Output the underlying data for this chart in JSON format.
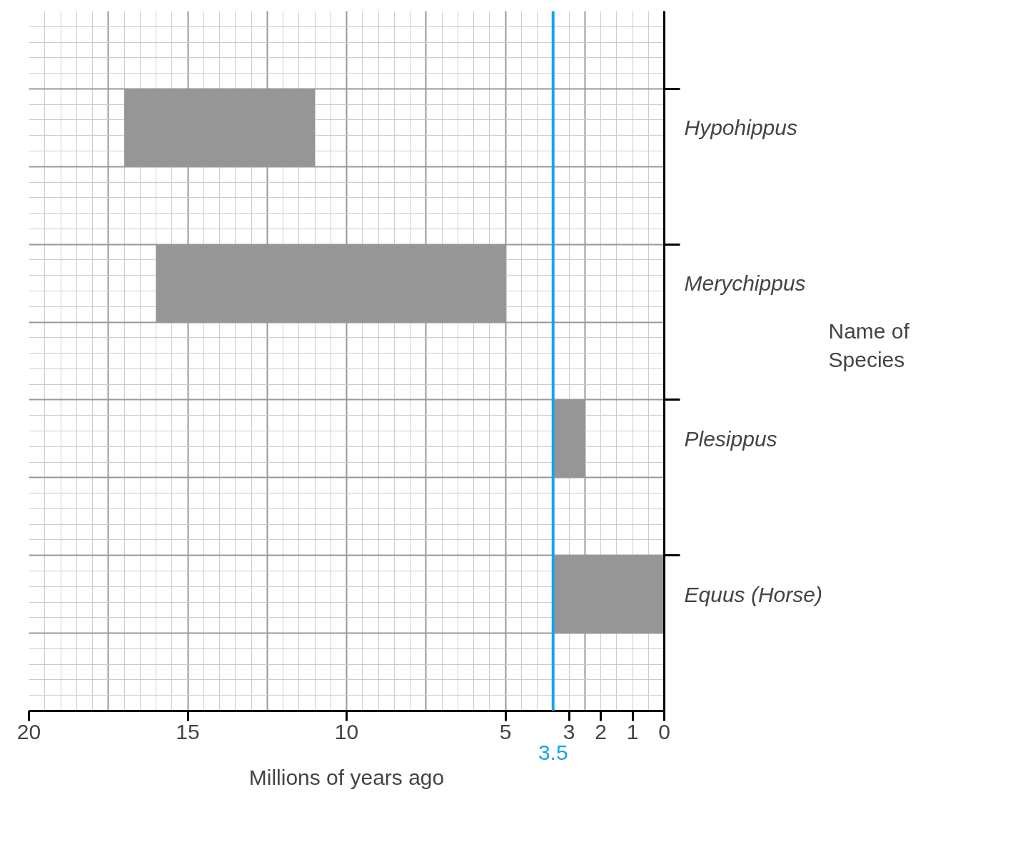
{
  "chart_data": {
    "type": "bar",
    "orientation": "horizontal",
    "xlabel": "Millions of years ago",
    "ylabel": "Name of Species",
    "categories": [
      "Hypohippus",
      "Merychippus",
      "Plesippus",
      "Equus (Horse)"
    ],
    "base": [
      11,
      5,
      2.5,
      0
    ],
    "values": [
      6,
      11,
      1,
      3.5
    ],
    "color": "#969696",
    "xlim": [
      20,
      0
    ],
    "xticks": [
      20,
      15,
      10,
      5,
      3,
      2,
      1,
      0
    ],
    "grid": true,
    "ref_lines": [
      {
        "axis": "x",
        "value": 3.5,
        "label": "3.5",
        "color": "#1aa3e8"
      }
    ]
  }
}
